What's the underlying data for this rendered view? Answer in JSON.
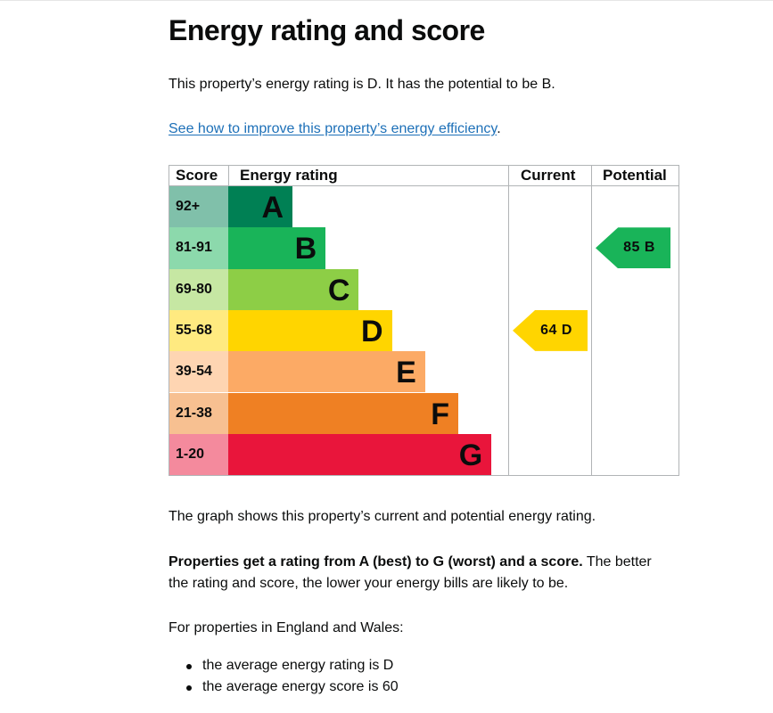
{
  "page": {
    "title": "Energy rating and score",
    "summary": "This property’s energy rating is D. It has the potential to be B.",
    "improve_link": "See how to improve this property’s energy efficiency",
    "improve_link_suffix": ".",
    "graph_caption": "The graph shows this property’s current and potential energy rating.",
    "rating_explanation_bold": "Properties get a rating from A (best) to G (worst) and a score.",
    "rating_explanation_rest_1": " The better",
    "rating_explanation_rest_2": "the rating and score, the lower your energy bills are likely to be.",
    "region_intro": "For properties in England and Wales:",
    "bullets": [
      "the average energy rating is D",
      "the average energy score is 60"
    ]
  },
  "chart_data": {
    "type": "table",
    "headers": {
      "score": "Score",
      "rating": "Energy rating",
      "current": "Current",
      "potential": "Potential"
    },
    "bands": [
      {
        "score": "92+",
        "letter": "A",
        "color": "#008054",
        "score_bg": "#80c0aa"
      },
      {
        "score": "81-91",
        "letter": "B",
        "color": "#19b459",
        "score_bg": "#8cd9ac"
      },
      {
        "score": "69-80",
        "letter": "C",
        "color": "#8dce46",
        "score_bg": "#c6e7a3"
      },
      {
        "score": "55-68",
        "letter": "D",
        "color": "#ffd500",
        "score_bg": "#ffea80"
      },
      {
        "score": "39-54",
        "letter": "E",
        "color": "#fcaa65",
        "score_bg": "#fed5b2"
      },
      {
        "score": "21-38",
        "letter": "F",
        "color": "#ef8023",
        "score_bg": "#f7c091"
      },
      {
        "score": "1-20",
        "letter": "G",
        "color": "#e9153b",
        "score_bg": "#f48a9d"
      }
    ],
    "current": {
      "score": 64,
      "letter": "D",
      "label": "64 D",
      "color": "#ffd500"
    },
    "potential": {
      "score": 85,
      "letter": "B",
      "label": "85 B",
      "color": "#19b459"
    }
  }
}
